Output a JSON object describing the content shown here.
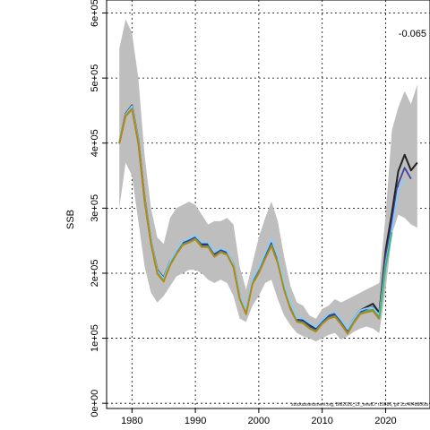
{
  "chart_data": {
    "type": "line",
    "ylabel": "SSB",
    "annotation": "-0.065",
    "footer": "stockassessment.org, BM2026_12_newID: r19686, git 1cc464b806fa",
    "x": [
      1978,
      1979,
      1980,
      1981,
      1982,
      1983,
      1984,
      1985,
      1986,
      1987,
      1988,
      1989,
      1990,
      1991,
      1992,
      1993,
      1994,
      1995,
      1996,
      1997,
      1998,
      1999,
      2000,
      2001,
      2002,
      2003,
      2004,
      2005,
      2006,
      2007,
      2008,
      2009,
      2010,
      2011,
      2012,
      2013,
      2014,
      2015,
      2016,
      2017,
      2018,
      2019,
      2020,
      2021,
      2022,
      2023,
      2024,
      2025
    ],
    "xlim": [
      1976,
      2027
    ],
    "ylim": [
      -8000,
      620000
    ],
    "x_ticks": [
      1980,
      1990,
      2000,
      2010,
      2020
    ],
    "x_tick_labels": [
      "1980",
      "1990",
      "2000",
      "2010",
      "2020"
    ],
    "y_ticks": [
      0,
      100000,
      200000,
      300000,
      400000,
      500000,
      600000
    ],
    "y_tick_labels": [
      "0e+00",
      "1e+05",
      "2e+05",
      "3e+05",
      "4e+05",
      "5e+05",
      "6e+05"
    ],
    "grid": true,
    "band": {
      "color": "#bebebe",
      "lower": [
        300000,
        370000,
        350000,
        280000,
        210000,
        170000,
        155000,
        165000,
        180000,
        195000,
        200000,
        205000,
        205000,
        200000,
        190000,
        185000,
        190000,
        185000,
        165000,
        130000,
        125000,
        150000,
        165000,
        185000,
        190000,
        160000,
        135000,
        120000,
        108000,
        103000,
        100000,
        95000,
        100000,
        105000,
        108000,
        98000,
        103000,
        110000,
        115000,
        118000,
        115000,
        108000,
        175000,
        260000,
        290000,
        285000,
        275000,
        270000
      ],
      "upper": [
        545000,
        590000,
        570000,
        500000,
        380000,
        300000,
        255000,
        245000,
        285000,
        300000,
        305000,
        310000,
        305000,
        290000,
        275000,
        280000,
        280000,
        285000,
        275000,
        210000,
        175000,
        215000,
        255000,
        285000,
        310000,
        280000,
        225000,
        180000,
        155000,
        150000,
        135000,
        130000,
        145000,
        150000,
        160000,
        155000,
        160000,
        165000,
        170000,
        175000,
        180000,
        185000,
        290000,
        420000,
        455000,
        480000,
        460000,
        490000
      ]
    },
    "series": [
      {
        "color": "#222222",
        "values": [
          400000,
          445000,
          458000,
          405000,
          315000,
          250000,
          205000,
          193000,
          218000,
          233000,
          248000,
          252000,
          257000,
          245000,
          245000,
          230000,
          237000,
          233000,
          214000,
          165000,
          142000,
          188000,
          205000,
          226000,
          246000,
          220000,
          180000,
          150000,
          130000,
          128000,
          120000,
          115000,
          127000,
          136000,
          139000,
          127000,
          113000,
          130000,
          143000,
          148000,
          153000,
          139000,
          235000,
          293000,
          357000,
          382000,
          358000,
          370000
        ]
      },
      {
        "color": "#4040a0",
        "values": [
          400000,
          443000,
          455000,
          402000,
          312000,
          248000,
          202000,
          190000,
          215000,
          232000,
          246000,
          250000,
          255000,
          243000,
          243000,
          228000,
          235000,
          231000,
          212000,
          163000,
          140000,
          186000,
          203000,
          225000,
          245000,
          218000,
          177000,
          147000,
          128000,
          126000,
          118000,
          113000,
          125000,
          133000,
          136000,
          124000,
          110000,
          127000,
          140000,
          145000,
          148000,
          135000,
          225000,
          280000,
          338000,
          362000,
          345000,
          null
        ]
      },
      {
        "color": "#87cefa",
        "values": [
          401000,
          444000,
          457000,
          404000,
          314000,
          250000,
          204000,
          192000,
          218000,
          235000,
          249000,
          253000,
          258000,
          247000,
          247000,
          232000,
          238000,
          234000,
          214000,
          166000,
          143000,
          190000,
          208000,
          231000,
          252000,
          225000,
          183000,
          152000,
          131000,
          130000,
          123000,
          117000,
          128000,
          137000,
          140000,
          128000,
          114000,
          130000,
          143000,
          146000,
          147000,
          136000,
          215000,
          268000,
          330000,
          343000,
          null,
          null
        ]
      },
      {
        "color": "#3cb371",
        "values": [
          400000,
          442000,
          453000,
          400000,
          310000,
          246000,
          200000,
          188000,
          213000,
          230000,
          244000,
          248000,
          253000,
          241000,
          241000,
          226000,
          233000,
          229000,
          210000,
          161000,
          138000,
          184000,
          201000,
          223000,
          243000,
          216000,
          175000,
          145000,
          126000,
          124000,
          116000,
          111000,
          123000,
          131000,
          134000,
          122000,
          108000,
          125000,
          138000,
          142000,
          144000,
          131000,
          210000,
          263000,
          null,
          null,
          null,
          null
        ]
      },
      {
        "color": "#b8860b",
        "values": [
          399000,
          441000,
          452000,
          399000,
          309000,
          245000,
          199000,
          187000,
          212000,
          229000,
          243000,
          247000,
          252000,
          240000,
          240000,
          225000,
          232000,
          228000,
          209000,
          160000,
          137000,
          183000,
          200000,
          222000,
          242000,
          215000,
          174000,
          144000,
          125000,
          123000,
          115000,
          110000,
          122000,
          130000,
          133000,
          121000,
          107000,
          124000,
          137000,
          140000,
          142000,
          129000,
          null,
          null,
          null,
          null,
          null,
          null
        ]
      }
    ]
  }
}
